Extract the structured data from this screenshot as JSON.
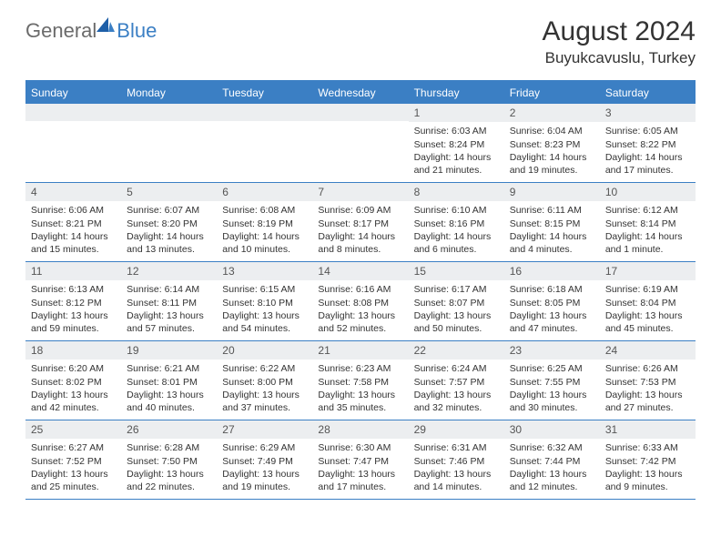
{
  "logo": {
    "text1": "General",
    "text2": "Blue"
  },
  "title": "August 2024",
  "location": "Buyukcavuslu, Turkey",
  "colors": {
    "header_bg": "#3b7fc4",
    "header_text": "#ffffff",
    "daynum_bg": "#eceef0",
    "body_text": "#333333",
    "logo_gray": "#6b6b6b",
    "logo_blue": "#3b7fc4",
    "border": "#3b7fc4"
  },
  "day_names": [
    "Sunday",
    "Monday",
    "Tuesday",
    "Wednesday",
    "Thursday",
    "Friday",
    "Saturday"
  ],
  "weeks": [
    [
      {
        "n": "",
        "sunrise": "",
        "sunset": "",
        "daylight": ""
      },
      {
        "n": "",
        "sunrise": "",
        "sunset": "",
        "daylight": ""
      },
      {
        "n": "",
        "sunrise": "",
        "sunset": "",
        "daylight": ""
      },
      {
        "n": "",
        "sunrise": "",
        "sunset": "",
        "daylight": ""
      },
      {
        "n": "1",
        "sunrise": "Sunrise: 6:03 AM",
        "sunset": "Sunset: 8:24 PM",
        "daylight": "Daylight: 14 hours and 21 minutes."
      },
      {
        "n": "2",
        "sunrise": "Sunrise: 6:04 AM",
        "sunset": "Sunset: 8:23 PM",
        "daylight": "Daylight: 14 hours and 19 minutes."
      },
      {
        "n": "3",
        "sunrise": "Sunrise: 6:05 AM",
        "sunset": "Sunset: 8:22 PM",
        "daylight": "Daylight: 14 hours and 17 minutes."
      }
    ],
    [
      {
        "n": "4",
        "sunrise": "Sunrise: 6:06 AM",
        "sunset": "Sunset: 8:21 PM",
        "daylight": "Daylight: 14 hours and 15 minutes."
      },
      {
        "n": "5",
        "sunrise": "Sunrise: 6:07 AM",
        "sunset": "Sunset: 8:20 PM",
        "daylight": "Daylight: 14 hours and 13 minutes."
      },
      {
        "n": "6",
        "sunrise": "Sunrise: 6:08 AM",
        "sunset": "Sunset: 8:19 PM",
        "daylight": "Daylight: 14 hours and 10 minutes."
      },
      {
        "n": "7",
        "sunrise": "Sunrise: 6:09 AM",
        "sunset": "Sunset: 8:17 PM",
        "daylight": "Daylight: 14 hours and 8 minutes."
      },
      {
        "n": "8",
        "sunrise": "Sunrise: 6:10 AM",
        "sunset": "Sunset: 8:16 PM",
        "daylight": "Daylight: 14 hours and 6 minutes."
      },
      {
        "n": "9",
        "sunrise": "Sunrise: 6:11 AM",
        "sunset": "Sunset: 8:15 PM",
        "daylight": "Daylight: 14 hours and 4 minutes."
      },
      {
        "n": "10",
        "sunrise": "Sunrise: 6:12 AM",
        "sunset": "Sunset: 8:14 PM",
        "daylight": "Daylight: 14 hours and 1 minute."
      }
    ],
    [
      {
        "n": "11",
        "sunrise": "Sunrise: 6:13 AM",
        "sunset": "Sunset: 8:12 PM",
        "daylight": "Daylight: 13 hours and 59 minutes."
      },
      {
        "n": "12",
        "sunrise": "Sunrise: 6:14 AM",
        "sunset": "Sunset: 8:11 PM",
        "daylight": "Daylight: 13 hours and 57 minutes."
      },
      {
        "n": "13",
        "sunrise": "Sunrise: 6:15 AM",
        "sunset": "Sunset: 8:10 PM",
        "daylight": "Daylight: 13 hours and 54 minutes."
      },
      {
        "n": "14",
        "sunrise": "Sunrise: 6:16 AM",
        "sunset": "Sunset: 8:08 PM",
        "daylight": "Daylight: 13 hours and 52 minutes."
      },
      {
        "n": "15",
        "sunrise": "Sunrise: 6:17 AM",
        "sunset": "Sunset: 8:07 PM",
        "daylight": "Daylight: 13 hours and 50 minutes."
      },
      {
        "n": "16",
        "sunrise": "Sunrise: 6:18 AM",
        "sunset": "Sunset: 8:05 PM",
        "daylight": "Daylight: 13 hours and 47 minutes."
      },
      {
        "n": "17",
        "sunrise": "Sunrise: 6:19 AM",
        "sunset": "Sunset: 8:04 PM",
        "daylight": "Daylight: 13 hours and 45 minutes."
      }
    ],
    [
      {
        "n": "18",
        "sunrise": "Sunrise: 6:20 AM",
        "sunset": "Sunset: 8:02 PM",
        "daylight": "Daylight: 13 hours and 42 minutes."
      },
      {
        "n": "19",
        "sunrise": "Sunrise: 6:21 AM",
        "sunset": "Sunset: 8:01 PM",
        "daylight": "Daylight: 13 hours and 40 minutes."
      },
      {
        "n": "20",
        "sunrise": "Sunrise: 6:22 AM",
        "sunset": "Sunset: 8:00 PM",
        "daylight": "Daylight: 13 hours and 37 minutes."
      },
      {
        "n": "21",
        "sunrise": "Sunrise: 6:23 AM",
        "sunset": "Sunset: 7:58 PM",
        "daylight": "Daylight: 13 hours and 35 minutes."
      },
      {
        "n": "22",
        "sunrise": "Sunrise: 6:24 AM",
        "sunset": "Sunset: 7:57 PM",
        "daylight": "Daylight: 13 hours and 32 minutes."
      },
      {
        "n": "23",
        "sunrise": "Sunrise: 6:25 AM",
        "sunset": "Sunset: 7:55 PM",
        "daylight": "Daylight: 13 hours and 30 minutes."
      },
      {
        "n": "24",
        "sunrise": "Sunrise: 6:26 AM",
        "sunset": "Sunset: 7:53 PM",
        "daylight": "Daylight: 13 hours and 27 minutes."
      }
    ],
    [
      {
        "n": "25",
        "sunrise": "Sunrise: 6:27 AM",
        "sunset": "Sunset: 7:52 PM",
        "daylight": "Daylight: 13 hours and 25 minutes."
      },
      {
        "n": "26",
        "sunrise": "Sunrise: 6:28 AM",
        "sunset": "Sunset: 7:50 PM",
        "daylight": "Daylight: 13 hours and 22 minutes."
      },
      {
        "n": "27",
        "sunrise": "Sunrise: 6:29 AM",
        "sunset": "Sunset: 7:49 PM",
        "daylight": "Daylight: 13 hours and 19 minutes."
      },
      {
        "n": "28",
        "sunrise": "Sunrise: 6:30 AM",
        "sunset": "Sunset: 7:47 PM",
        "daylight": "Daylight: 13 hours and 17 minutes."
      },
      {
        "n": "29",
        "sunrise": "Sunrise: 6:31 AM",
        "sunset": "Sunset: 7:46 PM",
        "daylight": "Daylight: 13 hours and 14 minutes."
      },
      {
        "n": "30",
        "sunrise": "Sunrise: 6:32 AM",
        "sunset": "Sunset: 7:44 PM",
        "daylight": "Daylight: 13 hours and 12 minutes."
      },
      {
        "n": "31",
        "sunrise": "Sunrise: 6:33 AM",
        "sunset": "Sunset: 7:42 PM",
        "daylight": "Daylight: 13 hours and 9 minutes."
      }
    ]
  ]
}
